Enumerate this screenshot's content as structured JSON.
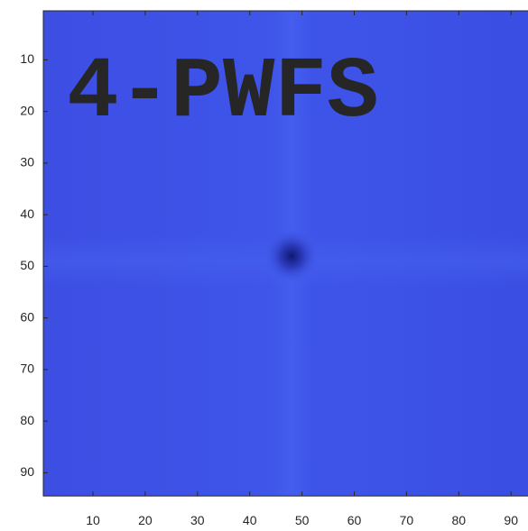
{
  "chart_data": {
    "type": "image",
    "annotation": "4-PWFS",
    "annotation_color": "#00ffff",
    "xlim": [
      0.5,
      95.5
    ],
    "ylim": [
      0.5,
      94.5
    ],
    "ydir": "reverse",
    "xticks": [
      10,
      20,
      30,
      40,
      50,
      60,
      70,
      80,
      90
    ],
    "yticks": [
      10,
      20,
      30,
      40,
      50,
      60,
      70,
      80,
      90
    ]
  }
}
